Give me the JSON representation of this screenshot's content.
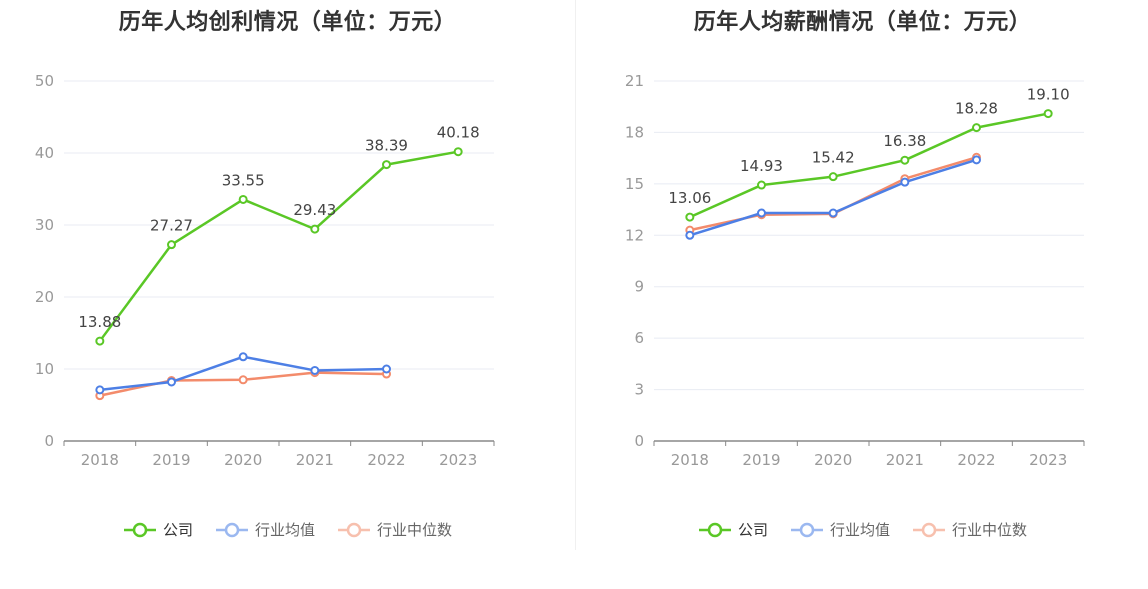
{
  "colors": {
    "company": "#5ac726",
    "avg": "#4d7fe5",
    "median": "#f38b6b",
    "grid": "#e8ebf3",
    "axis": "#999999",
    "label": "#444444"
  },
  "legend": [
    {
      "key": "company",
      "label": "公司",
      "color": "#5ac726"
    },
    {
      "key": "avg",
      "label": "行业均值",
      "color": "#4d7fe5"
    },
    {
      "key": "median",
      "label": "行业中位数",
      "color": "#f38b6b"
    }
  ],
  "chart_data": [
    {
      "type": "line",
      "title": "历年人均创利情况（单位：万元）",
      "categories": [
        "2018",
        "2019",
        "2020",
        "2021",
        "2022",
        "2023"
      ],
      "ylim": [
        0,
        50
      ],
      "yticks": [
        "0",
        "10",
        "20",
        "30",
        "40",
        "50"
      ],
      "series": [
        {
          "name": "公司",
          "key": "company",
          "values": [
            13.88,
            27.27,
            33.55,
            29.43,
            38.39,
            40.18
          ],
          "labels": [
            "13.88",
            "27.27",
            "33.55",
            "29.43",
            "38.39",
            "40.18"
          ]
        },
        {
          "name": "行业均值",
          "key": "avg",
          "values": [
            7.1,
            8.2,
            11.7,
            9.8,
            10.0,
            null
          ]
        },
        {
          "name": "行业中位数",
          "key": "median",
          "values": [
            6.3,
            8.4,
            8.5,
            9.5,
            9.3,
            null
          ]
        }
      ]
    },
    {
      "type": "line",
      "title": "历年人均薪酬情况（单位：万元）",
      "categories": [
        "2018",
        "2019",
        "2020",
        "2021",
        "2022",
        "2023"
      ],
      "ylim": [
        0,
        21
      ],
      "yticks": [
        "0",
        "3",
        "6",
        "9",
        "12",
        "15",
        "18",
        "21"
      ],
      "series": [
        {
          "name": "公司",
          "key": "company",
          "values": [
            13.06,
            14.93,
            15.42,
            16.38,
            18.28,
            19.1
          ],
          "labels": [
            "13.06",
            "14.93",
            "15.42",
            "16.38",
            "18.28",
            "19.10"
          ]
        },
        {
          "name": "行业均值",
          "key": "avg",
          "values": [
            12.0,
            13.3,
            13.3,
            15.1,
            16.4,
            null
          ]
        },
        {
          "name": "行业中位数",
          "key": "median",
          "values": [
            12.3,
            13.2,
            13.25,
            15.3,
            16.55,
            null
          ]
        }
      ]
    }
  ]
}
